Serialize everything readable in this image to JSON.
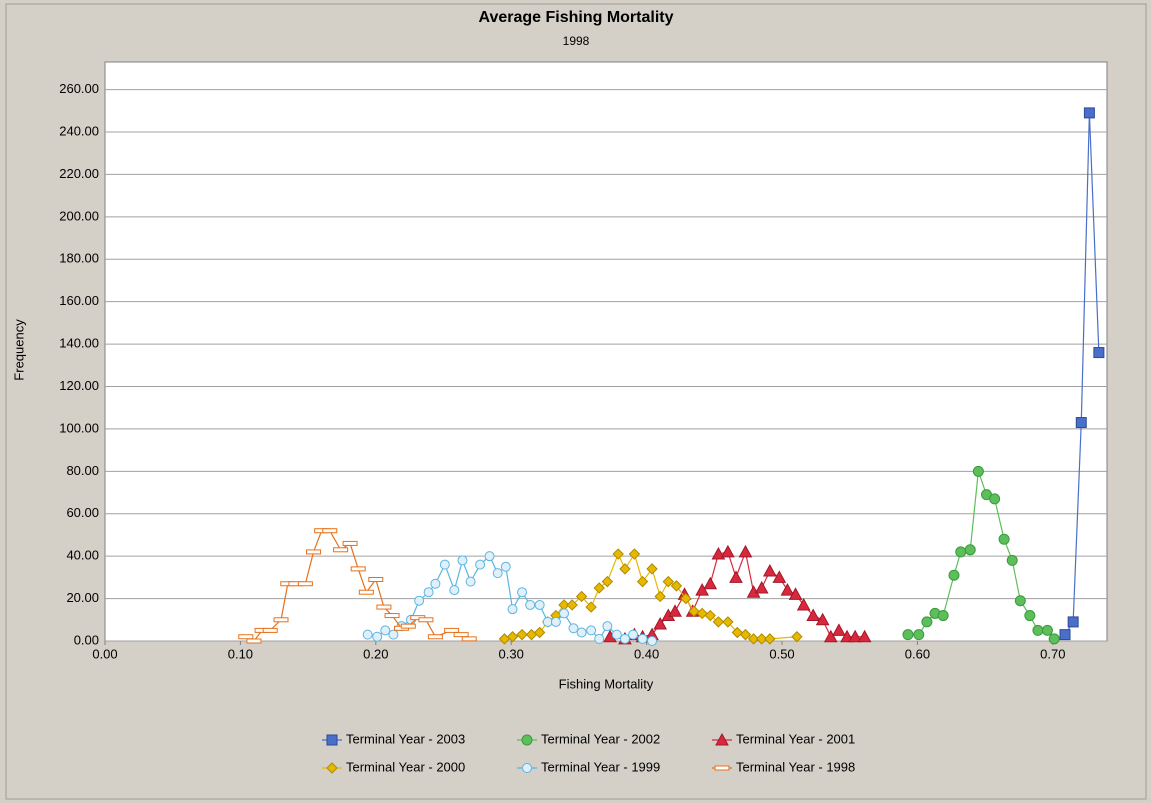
{
  "chart_data": {
    "type": "line",
    "title": "Average Fishing Mortality",
    "subtitle": "1998",
    "x_label": "Fishing Mortality",
    "y_label": "Frequency",
    "xlim": [
      0,
      0.74
    ],
    "ylim": [
      0,
      273
    ],
    "xticks": [
      {
        "value": 0,
        "label": "0.00"
      },
      {
        "value": 0.1,
        "label": "0.10"
      },
      {
        "value": 0.2,
        "label": "0.20"
      },
      {
        "value": 0.3,
        "label": "0.30"
      },
      {
        "value": 0.4,
        "label": "0.40"
      },
      {
        "value": 0.5,
        "label": "0.50"
      },
      {
        "value": 0.6,
        "label": "0.60"
      },
      {
        "value": 0.7,
        "label": "0.70"
      }
    ],
    "yticks": [
      {
        "value": 0,
        "label": "0.00"
      },
      {
        "value": 20,
        "label": "20.00"
      },
      {
        "value": 40,
        "label": "40.00"
      },
      {
        "value": 60,
        "label": "60.00"
      },
      {
        "value": 80,
        "label": "80.00"
      },
      {
        "value": 100,
        "label": "100.00"
      },
      {
        "value": 120,
        "label": "120.00"
      },
      {
        "value": 140,
        "label": "140.00"
      },
      {
        "value": 160,
        "label": "160.00"
      },
      {
        "value": 180,
        "label": "180.00"
      },
      {
        "value": 200,
        "label": "200.00"
      },
      {
        "value": 220,
        "label": "220.00"
      },
      {
        "value": 240,
        "label": "240.00"
      },
      {
        "value": 260,
        "label": "260.00"
      }
    ],
    "grid": true,
    "legend": "bottom",
    "series": [
      {
        "name": "Terminal Year - 2003",
        "color": "#4a6fc9",
        "marker": "square",
        "x": [
          0.709,
          0.715,
          0.721,
          0.727,
          0.734
        ],
        "values": [
          3,
          9,
          103,
          249,
          136
        ]
      },
      {
        "name": "Terminal Year - 2002",
        "color": "#5cbf5c",
        "marker": "circle",
        "x": [
          0.593,
          0.601,
          0.607,
          0.613,
          0.619,
          0.627,
          0.632,
          0.639,
          0.645,
          0.651,
          0.657,
          0.664,
          0.67,
          0.676,
          0.683,
          0.689,
          0.696,
          0.701
        ],
        "values": [
          3,
          3,
          9,
          13,
          12,
          31,
          42,
          43,
          80,
          69,
          67,
          48,
          38,
          19,
          12,
          5,
          5,
          1
        ]
      },
      {
        "name": "Terminal Year - 2001",
        "color": "#d9283d",
        "marker": "triangle",
        "x": [
          0.373,
          0.384,
          0.391,
          0.397,
          0.404,
          0.41,
          0.416,
          0.421,
          0.428,
          0.434,
          0.441,
          0.447,
          0.453,
          0.46,
          0.466,
          0.473,
          0.479,
          0.485,
          0.491,
          0.498,
          0.504,
          0.51,
          0.516,
          0.523,
          0.53,
          0.536,
          0.542,
          0.548,
          0.554,
          0.561
        ],
        "values": [
          2,
          1,
          3,
          2,
          3,
          8,
          12,
          14,
          22,
          14,
          24,
          27,
          41,
          42,
          30,
          42,
          23,
          25,
          33,
          30,
          24,
          22,
          17,
          12,
          10,
          2,
          5,
          2,
          2,
          2
        ]
      },
      {
        "name": "Terminal Year - 2000",
        "color": "#e6b800",
        "marker": "diamond",
        "x": [
          0.295,
          0.301,
          0.308,
          0.315,
          0.321,
          0.327,
          0.333,
          0.339,
          0.345,
          0.352,
          0.359,
          0.365,
          0.371,
          0.379,
          0.384,
          0.391,
          0.397,
          0.404,
          0.41,
          0.416,
          0.422,
          0.429,
          0.435,
          0.441,
          0.447,
          0.453,
          0.46,
          0.467,
          0.473,
          0.479,
          0.485,
          0.491,
          0.511
        ],
        "values": [
          1,
          2,
          3,
          3,
          4,
          9,
          12,
          17,
          17,
          21,
          16,
          25,
          28,
          41,
          34,
          41,
          28,
          34,
          21,
          28,
          26,
          20,
          14,
          13,
          12,
          9,
          9,
          4,
          3,
          1,
          1,
          1,
          2
        ]
      },
      {
        "name": "Terminal Year - 1999",
        "color": "#5bb5e0",
        "marker": "ring",
        "x": [
          0.194,
          0.201,
          0.207,
          0.213,
          0.219,
          0.226,
          0.232,
          0.239,
          0.244,
          0.251,
          0.258,
          0.264,
          0.27,
          0.277,
          0.284,
          0.29,
          0.296,
          0.301,
          0.308,
          0.314,
          0.321,
          0.327,
          0.333,
          0.339,
          0.346,
          0.352,
          0.359,
          0.365,
          0.371,
          0.378,
          0.384,
          0.39,
          0.397,
          0.404
        ],
        "values": [
          3,
          2,
          5,
          3,
          7,
          10,
          19,
          23,
          27,
          36,
          24,
          38,
          28,
          36,
          40,
          32,
          35,
          15,
          23,
          17,
          17,
          9,
          9,
          13,
          6,
          4,
          5,
          1,
          7,
          3,
          1,
          3,
          1,
          0
        ]
      },
      {
        "name": "Terminal Year - 1998",
        "color": "#e8701a",
        "marker": "dash",
        "x": [
          0.104,
          0.11,
          0.116,
          0.122,
          0.13,
          0.135,
          0.141,
          0.148,
          0.154,
          0.16,
          0.166,
          0.174,
          0.181,
          0.187,
          0.193,
          0.2,
          0.206,
          0.212,
          0.219,
          0.224,
          0.231,
          0.237,
          0.244,
          0.256,
          0.263,
          0.269
        ],
        "values": [
          2,
          0,
          5,
          5,
          10,
          27,
          27,
          27,
          42,
          52,
          52,
          43,
          46,
          34,
          23,
          29,
          16,
          12,
          6,
          7,
          11,
          10,
          2,
          5,
          3,
          1
        ]
      }
    ]
  }
}
